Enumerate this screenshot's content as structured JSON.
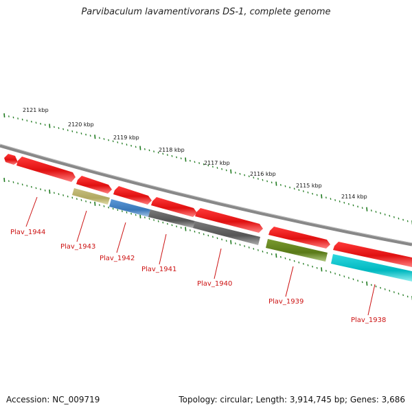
{
  "title": "Parvibaculum lavamentivorans DS-1, complete genome",
  "footer": {
    "accession": "Accession: NC_009719",
    "stats": "Topology: circular; Length: 3,914,745 bp; Genes: 3,686"
  },
  "kbp_labels": [
    "2121 kbp",
    "2120 kbp",
    "2119 kbp",
    "2118 kbp",
    "2117 kbp",
    "2116 kbp",
    "2115 kbp",
    "2114 kbp"
  ],
  "colors": {
    "backbone": "#888888",
    "tick_green": "#1f7a1f",
    "red_gene": "#ee1111",
    "label_red": "#cc1111",
    "khaki": "#b8b070",
    "blue": "#4a88c8",
    "gray": "#6a6a6a",
    "olive": "#6a8a20",
    "cyan": "#10c8d0"
  },
  "genes": [
    {
      "name": "Plav_1944",
      "color": "red_gene"
    },
    {
      "name": "Plav_1943",
      "color": "khaki"
    },
    {
      "name": "Plav_1942",
      "color": "blue"
    },
    {
      "name": "Plav_1941",
      "color": "gray"
    },
    {
      "name": "Plav_1940",
      "color": "gray"
    },
    {
      "name": "Plav_1939",
      "color": "olive"
    },
    {
      "name": "Plav_1938",
      "color": "cyan"
    }
  ]
}
